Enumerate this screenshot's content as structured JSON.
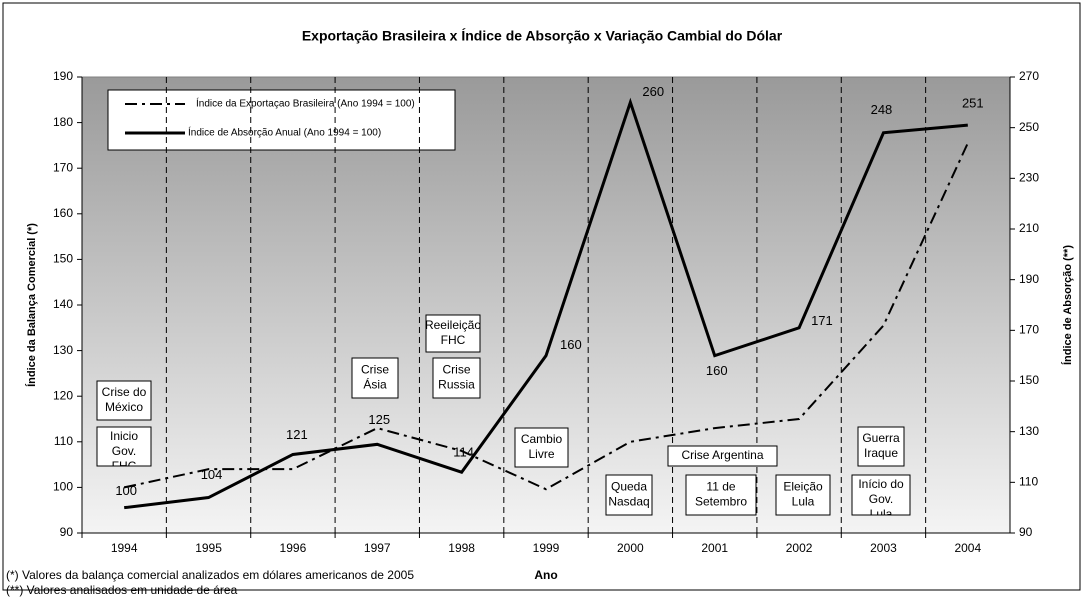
{
  "chart_data": {
    "type": "line",
    "title": "Exportação Brasileira x Índice de Absorção x Variação Cambial do Dólar",
    "x_label": "Ano",
    "y_label": "Índice da Balança Comercial (*)",
    "y2_label": "Índice de Absorção (**)",
    "categories": [
      "1994",
      "1995",
      "1996",
      "1997",
      "1998",
      "1999",
      "2000",
      "2001",
      "2002",
      "2003",
      "2004"
    ],
    "series": [
      {
        "name": "Índice da Exportaçao Brasileira (Ano 1994 = 100)",
        "color": "#000000",
        "style": "dash-dot",
        "values": [
          100,
          104,
          104,
          113,
          108,
          99.6,
          110,
          113,
          115,
          135.5,
          175.5
        ]
      },
      {
        "name": "Índice de Absorção Anual (Ano 1994 = 100)",
        "color": "#000000",
        "style": "solid",
        "axis": "y2",
        "show_labels": true,
        "values": [
          100,
          104,
          121,
          125,
          114,
          160,
          260,
          160,
          171,
          248,
          251
        ]
      }
    ],
    "ylim": [
      90,
      190
    ],
    "yticks": [
      90,
      100,
      110,
      120,
      130,
      140,
      150,
      160,
      170,
      180,
      190
    ],
    "y2lim": [
      90,
      270
    ],
    "y2ticks": [
      90,
      110,
      130,
      150,
      170,
      190,
      210,
      230,
      250,
      270
    ],
    "legend": "upper left",
    "annotations": [
      {
        "lines": [
          "Crise do",
          "México"
        ]
      },
      {
        "lines": [
          "Inicio",
          "Gov.",
          "FHC"
        ]
      },
      {
        "lines": [
          "Crise",
          "Ásia"
        ]
      },
      {
        "lines": [
          "Reeileição",
          "FHC"
        ]
      },
      {
        "lines": [
          "Crise",
          "Russia"
        ]
      },
      {
        "lines": [
          "Cambio",
          "Livre"
        ]
      },
      {
        "lines": [
          "Queda",
          "Nasdaq"
        ]
      },
      {
        "lines": [
          "Crise Argentina"
        ]
      },
      {
        "lines": [
          "11 de",
          "Setembro"
        ]
      },
      {
        "lines": [
          "Eleição",
          "Lula"
        ]
      },
      {
        "lines": [
          "Guerra",
          "Iraque"
        ]
      },
      {
        "lines": [
          "Início do",
          "Gov.",
          "Lula"
        ]
      }
    ],
    "footnotes": [
      "(*) Valores da balança comercial analizados em dólares americanos de 2005",
      "(**) Valores analisados em unidade de área"
    ]
  }
}
